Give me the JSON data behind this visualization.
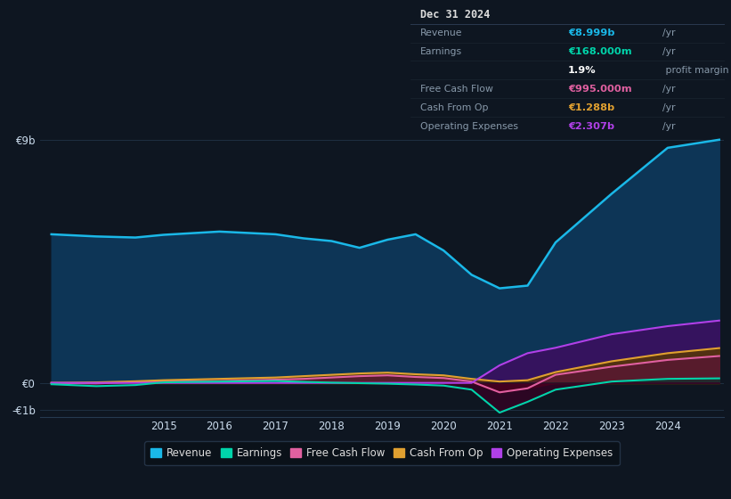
{
  "bg_color": "#0e1621",
  "plot_bg_color": "#0e1621",
  "years": [
    2013.0,
    2013.8,
    2014.5,
    2015.0,
    2016.0,
    2017.0,
    2017.5,
    2018.0,
    2018.5,
    2019.0,
    2019.5,
    2020.0,
    2020.5,
    2021.0,
    2021.5,
    2022.0,
    2023.0,
    2024.0,
    2024.92
  ],
  "revenue": [
    5.5,
    5.42,
    5.38,
    5.48,
    5.6,
    5.5,
    5.35,
    5.25,
    5.0,
    5.3,
    5.5,
    4.9,
    4.0,
    3.5,
    3.6,
    5.2,
    7.0,
    8.7,
    9.0
  ],
  "earnings": [
    -0.05,
    -0.12,
    -0.08,
    0.02,
    0.05,
    0.07,
    0.04,
    0.01,
    -0.01,
    -0.03,
    -0.06,
    -0.1,
    -0.25,
    -1.1,
    -0.7,
    -0.25,
    0.05,
    0.15,
    0.168
  ],
  "free_cash_flow": [
    0.0,
    -0.02,
    0.03,
    0.06,
    0.07,
    0.12,
    0.15,
    0.2,
    0.25,
    0.28,
    0.22,
    0.18,
    0.05,
    -0.35,
    -0.2,
    0.3,
    0.6,
    0.85,
    0.995
  ],
  "cash_from_op": [
    0.0,
    0.02,
    0.06,
    0.1,
    0.15,
    0.2,
    0.25,
    0.3,
    0.35,
    0.38,
    0.32,
    0.28,
    0.15,
    0.05,
    0.1,
    0.4,
    0.8,
    1.1,
    1.288
  ],
  "operating_expenses": [
    0.0,
    0.0,
    0.0,
    0.0,
    0.0,
    0.0,
    0.0,
    0.0,
    0.0,
    0.0,
    0.0,
    0.0,
    0.0,
    0.65,
    1.1,
    1.3,
    1.8,
    2.1,
    2.307
  ],
  "revenue_color": "#1ab8e8",
  "earnings_color": "#00d4aa",
  "free_cash_flow_color": "#e060a0",
  "cash_from_op_color": "#e0a030",
  "operating_expenses_color": "#b040e8",
  "revenue_fill_color": "#0d3556",
  "grid_color": "#253a50",
  "text_color": "#8899aa",
  "axis_text_color": "#ccddee",
  "ylim_min": -1.25,
  "ylim_max": 10.2,
  "ytick_vals": [
    -1.0,
    0.0,
    9.0
  ],
  "ytick_labels": [
    "-€1b",
    "€0",
    "€9b"
  ],
  "xtick_vals": [
    2015,
    2016,
    2017,
    2018,
    2019,
    2020,
    2021,
    2022,
    2023,
    2024
  ],
  "table_rows": [
    {
      "label": "Dec 31 2024",
      "val": "",
      "unit": "",
      "val_color": "#ffffff",
      "is_header": true
    },
    {
      "label": "Revenue",
      "val": "€8.999b",
      "unit": "/yr",
      "val_color": "#1ab8e8",
      "is_header": false
    },
    {
      "label": "Earnings",
      "val": "€168.000m",
      "unit": "/yr",
      "val_color": "#00d4aa",
      "is_header": false
    },
    {
      "label": "",
      "val": "1.9%",
      "unit": " profit margin",
      "val_color": "#ffffff",
      "is_header": false
    },
    {
      "label": "Free Cash Flow",
      "val": "€995.000m",
      "unit": "/yr",
      "val_color": "#e060a0",
      "is_header": false
    },
    {
      "label": "Cash From Op",
      "val": "€1.288b",
      "unit": "/yr",
      "val_color": "#e0a030",
      "is_header": false
    },
    {
      "label": "Operating Expenses",
      "val": "€2.307b",
      "unit": "/yr",
      "val_color": "#b040e8",
      "is_header": false
    }
  ],
  "legend_items": [
    {
      "label": "Revenue",
      "color": "#1ab8e8"
    },
    {
      "label": "Earnings",
      "color": "#00d4aa"
    },
    {
      "label": "Free Cash Flow",
      "color": "#e060a0"
    },
    {
      "label": "Cash From Op",
      "color": "#e0a030"
    },
    {
      "label": "Operating Expenses",
      "color": "#b040e8"
    }
  ]
}
